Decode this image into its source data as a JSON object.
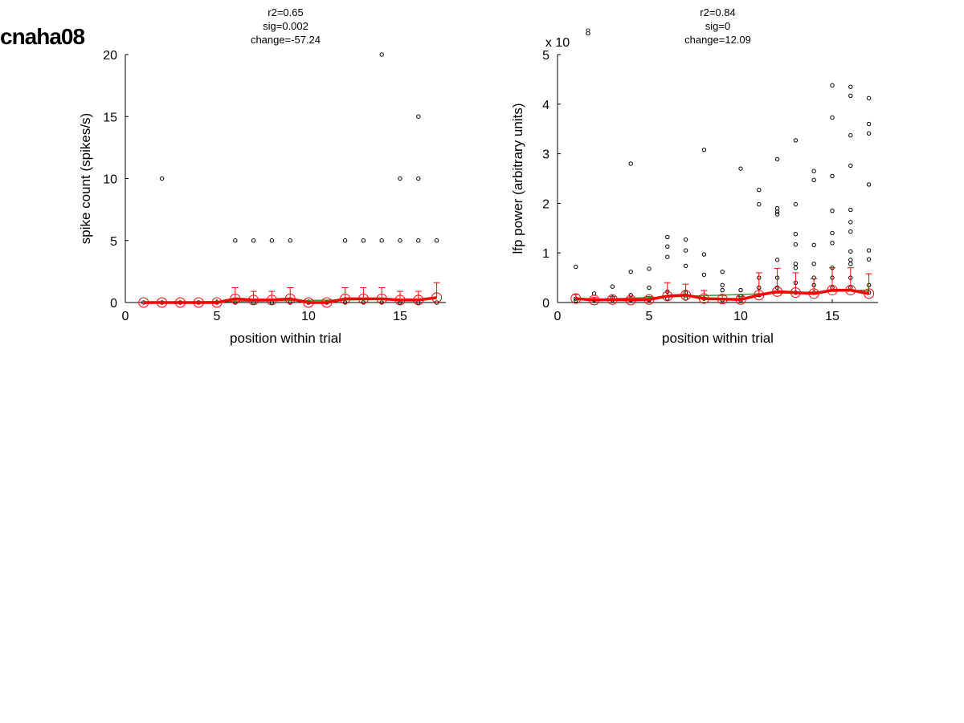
{
  "figure": {
    "title": "cnaha08"
  },
  "chart_data": [
    {
      "type": "scatter",
      "stats": [
        "r2=0.65",
        "sig=0.002",
        "change=-57.24"
      ],
      "xlabel": "position within trial",
      "ylabel": "spike count (spikes/s)",
      "xlim": [
        0,
        17.5
      ],
      "ylim": [
        0,
        20
      ],
      "xticks": [
        0,
        5,
        10,
        15
      ],
      "yticks": [
        0,
        5,
        10,
        15,
        20
      ],
      "exponent": "",
      "colors": {
        "points": "#000000",
        "mean": "#ff0000",
        "fit": "#3a9a2a"
      },
      "points": [
        [
          1,
          0
        ],
        [
          2,
          0
        ],
        [
          2,
          10
        ],
        [
          3,
          0
        ],
        [
          4,
          0
        ],
        [
          5,
          0
        ],
        [
          6,
          0
        ],
        [
          6,
          5
        ],
        [
          7,
          0
        ],
        [
          7,
          5
        ],
        [
          8,
          0
        ],
        [
          8,
          5
        ],
        [
          9,
          0
        ],
        [
          9,
          5
        ],
        [
          10,
          0
        ],
        [
          11,
          0
        ],
        [
          12,
          0
        ],
        [
          12,
          5
        ],
        [
          13,
          0
        ],
        [
          13,
          5
        ],
        [
          14,
          0
        ],
        [
          14,
          5
        ],
        [
          14,
          20
        ],
        [
          15,
          0
        ],
        [
          15,
          5
        ],
        [
          15,
          10
        ],
        [
          16,
          0
        ],
        [
          16,
          5
        ],
        [
          16,
          10
        ],
        [
          16,
          15
        ],
        [
          17,
          0
        ],
        [
          17,
          5
        ]
      ],
      "means": [
        {
          "x": 1,
          "y": 0,
          "err": 0
        },
        {
          "x": 2,
          "y": 0,
          "err": 0
        },
        {
          "x": 3,
          "y": 0,
          "err": 0
        },
        {
          "x": 4,
          "y": 0,
          "err": 0
        },
        {
          "x": 5,
          "y": 0,
          "err": 0
        },
        {
          "x": 6,
          "y": 0.3,
          "err": 0.9
        },
        {
          "x": 7,
          "y": 0.2,
          "err": 0.7
        },
        {
          "x": 8,
          "y": 0.2,
          "err": 0.7
        },
        {
          "x": 9,
          "y": 0.3,
          "err": 0.9
        },
        {
          "x": 10,
          "y": 0,
          "err": 0
        },
        {
          "x": 11,
          "y": 0,
          "err": 0
        },
        {
          "x": 12,
          "y": 0.3,
          "err": 0.9
        },
        {
          "x": 13,
          "y": 0.3,
          "err": 0.9
        },
        {
          "x": 14,
          "y": 0.3,
          "err": 0.9
        },
        {
          "x": 15,
          "y": 0.2,
          "err": 0.7
        },
        {
          "x": 16,
          "y": 0.2,
          "err": 0.7
        },
        {
          "x": 17,
          "y": 0.4,
          "err": 1.2
        }
      ],
      "fit": [
        [
          1,
          0.0
        ],
        [
          17,
          0.3
        ]
      ]
    },
    {
      "type": "scatter",
      "stats": [
        "r2=0.84",
        "sig=0",
        "change=12.09"
      ],
      "xlabel": "position within trial",
      "ylabel": "lfp power (arbitrary units)",
      "xlim": [
        0,
        17.5
      ],
      "ylim": [
        0,
        5
      ],
      "xticks": [
        0,
        5,
        10,
        15
      ],
      "yticks": [
        0,
        1,
        2,
        3,
        4,
        5
      ],
      "exponent": "x 10",
      "exponent_power": "8",
      "colors": {
        "points": "#000000",
        "mean": "#ff0000",
        "fit": "#3a9a2a"
      },
      "points": [
        [
          1,
          0.72
        ],
        [
          1,
          0.08
        ],
        [
          1,
          0.04
        ],
        [
          2,
          0.18
        ],
        [
          2,
          0.05
        ],
        [
          3,
          0.32
        ],
        [
          3,
          0.1
        ],
        [
          3,
          0.05
        ],
        [
          4,
          2.8
        ],
        [
          4,
          0.62
        ],
        [
          4,
          0.15
        ],
        [
          4,
          0.05
        ],
        [
          5,
          0.68
        ],
        [
          5,
          0.3
        ],
        [
          5,
          0.05
        ],
        [
          6,
          1.32
        ],
        [
          6,
          1.13
        ],
        [
          6,
          0.92
        ],
        [
          6,
          0.22
        ],
        [
          6,
          0.08
        ],
        [
          7,
          1.27
        ],
        [
          7,
          1.05
        ],
        [
          7,
          0.74
        ],
        [
          7,
          0.2
        ],
        [
          7,
          0.08
        ],
        [
          8,
          3.08
        ],
        [
          8,
          0.97
        ],
        [
          8,
          0.56
        ],
        [
          8,
          0.08
        ],
        [
          9,
          0.62
        ],
        [
          9,
          0.35
        ],
        [
          9,
          0.25
        ],
        [
          9,
          0.05
        ],
        [
          10,
          2.7
        ],
        [
          10,
          0.25
        ],
        [
          10,
          0.12
        ],
        [
          10,
          0.04
        ],
        [
          11,
          2.27
        ],
        [
          11,
          1.98
        ],
        [
          11,
          0.5
        ],
        [
          11,
          0.3
        ],
        [
          11,
          0.15
        ],
        [
          12,
          2.89
        ],
        [
          12,
          1.9
        ],
        [
          12,
          1.83
        ],
        [
          12,
          1.78
        ],
        [
          12,
          0.86
        ],
        [
          12,
          0.5
        ],
        [
          12,
          0.3
        ],
        [
          13,
          3.27
        ],
        [
          13,
          1.98
        ],
        [
          13,
          1.38
        ],
        [
          13,
          1.17
        ],
        [
          13,
          0.78
        ],
        [
          13,
          0.7
        ],
        [
          13,
          0.4
        ],
        [
          13,
          0.2
        ],
        [
          14,
          2.65
        ],
        [
          14,
          2.47
        ],
        [
          14,
          1.16
        ],
        [
          14,
          0.78
        ],
        [
          14,
          0.5
        ],
        [
          14,
          0.35
        ],
        [
          14,
          0.2
        ],
        [
          15,
          4.38
        ],
        [
          15,
          3.73
        ],
        [
          15,
          2.55
        ],
        [
          15,
          1.85
        ],
        [
          15,
          1.4
        ],
        [
          15,
          1.2
        ],
        [
          15,
          0.7
        ],
        [
          15,
          0.5
        ],
        [
          15,
          0.3
        ],
        [
          16,
          4.35
        ],
        [
          16,
          4.17
        ],
        [
          16,
          3.37
        ],
        [
          16,
          2.76
        ],
        [
          16,
          1.87
        ],
        [
          16,
          1.62
        ],
        [
          16,
          1.43
        ],
        [
          16,
          1.03
        ],
        [
          16,
          0.86
        ],
        [
          16,
          0.78
        ],
        [
          16,
          0.5
        ],
        [
          16,
          0.3
        ],
        [
          17,
          4.12
        ],
        [
          17,
          3.6
        ],
        [
          17,
          3.41
        ],
        [
          17,
          2.38
        ],
        [
          17,
          1.05
        ],
        [
          17,
          0.87
        ],
        [
          17,
          0.35
        ],
        [
          17,
          0.2
        ]
      ],
      "means": [
        {
          "x": 1,
          "y": 0.08,
          "err": 0.08
        },
        {
          "x": 2,
          "y": 0.05,
          "err": 0.05
        },
        {
          "x": 3,
          "y": 0.06,
          "err": 0.06
        },
        {
          "x": 4,
          "y": 0.05,
          "err": 0.05
        },
        {
          "x": 5,
          "y": 0.06,
          "err": 0.06
        },
        {
          "x": 6,
          "y": 0.13,
          "err": 0.27
        },
        {
          "x": 7,
          "y": 0.15,
          "err": 0.22
        },
        {
          "x": 8,
          "y": 0.08,
          "err": 0.16
        },
        {
          "x": 9,
          "y": 0.07,
          "err": 0.07
        },
        {
          "x": 10,
          "y": 0.06,
          "err": 0.06
        },
        {
          "x": 11,
          "y": 0.15,
          "err": 0.45
        },
        {
          "x": 12,
          "y": 0.22,
          "err": 0.47
        },
        {
          "x": 13,
          "y": 0.2,
          "err": 0.4
        },
        {
          "x": 14,
          "y": 0.18,
          "err": 0.3
        },
        {
          "x": 15,
          "y": 0.25,
          "err": 0.45
        },
        {
          "x": 16,
          "y": 0.25,
          "err": 0.45
        },
        {
          "x": 17,
          "y": 0.18,
          "err": 0.4
        }
      ],
      "fit": [
        [
          1,
          0.05
        ],
        [
          17,
          0.25
        ]
      ]
    }
  ]
}
